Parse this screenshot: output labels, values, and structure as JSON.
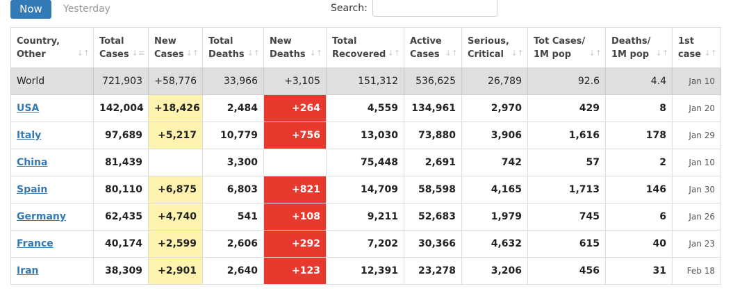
{
  "tabs": {
    "now": "Now",
    "yesterday": "Yesterday"
  },
  "search": {
    "label": "Search:",
    "value": ""
  },
  "columns": [
    {
      "line1": "Country,",
      "line2": "Other"
    },
    {
      "line1": "Total",
      "line2": "Cases"
    },
    {
      "line1": "New",
      "line2": "Cases"
    },
    {
      "line1": "Total",
      "line2": "Deaths"
    },
    {
      "line1": "New",
      "line2": "Deaths"
    },
    {
      "line1": "Total",
      "line2": "Recovered"
    },
    {
      "line1": "Active",
      "line2": "Cases"
    },
    {
      "line1": "Serious,",
      "line2": "Critical"
    },
    {
      "line1": "Tot Cases/",
      "line2": "1M pop"
    },
    {
      "line1": "Deaths/",
      "line2": "1M pop"
    },
    {
      "line1": "1st",
      "line2": "case"
    }
  ],
  "rows": [
    {
      "country": "World",
      "total_cases": "721,903",
      "new_cases": "+58,776",
      "total_deaths": "33,966",
      "new_deaths": "+3,105",
      "total_recovered": "151,312",
      "active": "536,625",
      "serious": "26,789",
      "per_m": "92.6",
      "deaths_per_m": "4.4",
      "first_case": "Jan 10"
    },
    {
      "country": "USA",
      "total_cases": "142,004",
      "new_cases": "+18,426",
      "total_deaths": "2,484",
      "new_deaths": "+264",
      "total_recovered": "4,559",
      "active": "134,961",
      "serious": "2,970",
      "per_m": "429",
      "deaths_per_m": "8",
      "first_case": "Jan 20"
    },
    {
      "country": "Italy",
      "total_cases": "97,689",
      "new_cases": "+5,217",
      "total_deaths": "10,779",
      "new_deaths": "+756",
      "total_recovered": "13,030",
      "active": "73,880",
      "serious": "3,906",
      "per_m": "1,616",
      "deaths_per_m": "178",
      "first_case": "Jan 29"
    },
    {
      "country": "China",
      "total_cases": "81,439",
      "new_cases": "",
      "total_deaths": "3,300",
      "new_deaths": "",
      "total_recovered": "75,448",
      "active": "2,691",
      "serious": "742",
      "per_m": "57",
      "deaths_per_m": "2",
      "first_case": "Jan 10"
    },
    {
      "country": "Spain",
      "total_cases": "80,110",
      "new_cases": "+6,875",
      "total_deaths": "6,803",
      "new_deaths": "+821",
      "total_recovered": "14,709",
      "active": "58,598",
      "serious": "4,165",
      "per_m": "1,713",
      "deaths_per_m": "146",
      "first_case": "Jan 30"
    },
    {
      "country": "Germany",
      "total_cases": "62,435",
      "new_cases": "+4,740",
      "total_deaths": "541",
      "new_deaths": "+108",
      "total_recovered": "9,211",
      "active": "52,683",
      "serious": "1,979",
      "per_m": "745",
      "deaths_per_m": "6",
      "first_case": "Jan 26"
    },
    {
      "country": "France",
      "total_cases": "40,174",
      "new_cases": "+2,599",
      "total_deaths": "2,606",
      "new_deaths": "+292",
      "total_recovered": "7,202",
      "active": "30,366",
      "serious": "4,632",
      "per_m": "615",
      "deaths_per_m": "40",
      "first_case": "Jan 23"
    },
    {
      "country": "Iran",
      "total_cases": "38,309",
      "new_cases": "+2,901",
      "total_deaths": "2,640",
      "new_deaths": "+123",
      "total_recovered": "12,391",
      "active": "23,278",
      "serious": "3,206",
      "per_m": "456",
      "deaths_per_m": "31",
      "first_case": "Feb 18"
    }
  ],
  "colors": {
    "accent": "#337ab7",
    "new_cases_bg": "#fff3b0",
    "new_deaths_bg": "#e8392f",
    "world_bg": "#dfdfdf"
  }
}
